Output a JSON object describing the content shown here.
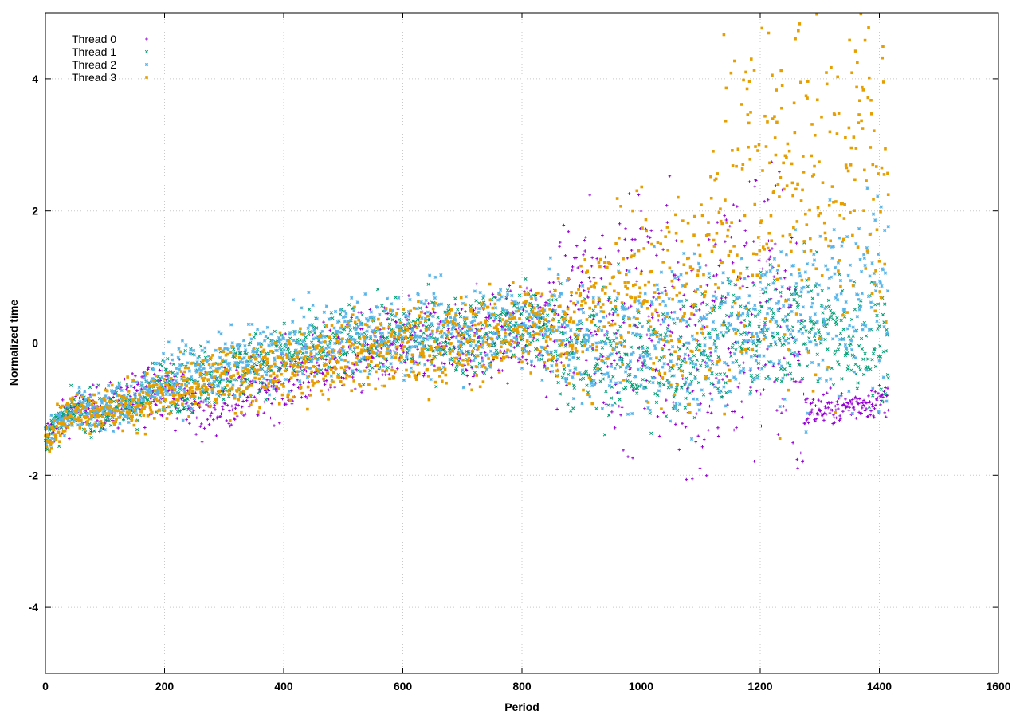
{
  "chart_data": {
    "type": "scatter",
    "title": "",
    "xlabel": "Period",
    "ylabel": "Normalized time",
    "xlim": [
      0,
      1600
    ],
    "ylim": [
      -5,
      5
    ],
    "x_ticks": [
      "0",
      "200",
      "400",
      "600",
      "800",
      "1000",
      "1200",
      "1400",
      "1600"
    ],
    "y_ticks": [
      "-4",
      "-2",
      "0",
      "2",
      "4"
    ],
    "grid": true,
    "legend_position": "top-left",
    "series": [
      {
        "name": "Thread 0",
        "color": "#9400d3",
        "marker": "plus",
        "trend": [
          [
            0,
            -1.4
          ],
          [
            50,
            -1.0
          ],
          [
            100,
            -1.0
          ],
          [
            150,
            -0.85
          ],
          [
            200,
            -0.6
          ],
          [
            250,
            -1.0
          ],
          [
            300,
            -0.85
          ],
          [
            400,
            -0.55
          ],
          [
            500,
            -0.2
          ],
          [
            600,
            -0.05
          ],
          [
            700,
            0.0
          ],
          [
            800,
            0.25
          ],
          [
            850,
            0.2
          ],
          [
            900,
            0.75
          ],
          [
            950,
            0.3
          ],
          [
            1000,
            0.5
          ],
          [
            1050,
            0.3
          ],
          [
            1100,
            -0.2
          ],
          [
            1150,
            0.3
          ],
          [
            1200,
            0.6
          ],
          [
            1250,
            0.4
          ],
          [
            1275,
            -1.05
          ],
          [
            1350,
            -0.95
          ],
          [
            1415,
            -0.85
          ]
        ],
        "spread": [
          [
            0,
            0.12
          ],
          [
            200,
            0.22
          ],
          [
            800,
            0.35
          ],
          [
            900,
            0.7
          ],
          [
            1150,
            1.2
          ],
          [
            1270,
            1.1
          ],
          [
            1275,
            0.12
          ],
          [
            1415,
            0.12
          ]
        ]
      },
      {
        "name": "Thread 1",
        "color": "#009e73",
        "marker": "cross",
        "trend": [
          [
            0,
            -1.4
          ],
          [
            50,
            -1.0
          ],
          [
            100,
            -1.05
          ],
          [
            150,
            -0.9
          ],
          [
            200,
            -0.6
          ],
          [
            250,
            -0.55
          ],
          [
            300,
            -0.45
          ],
          [
            400,
            -0.2
          ],
          [
            500,
            0.0
          ],
          [
            600,
            0.1
          ],
          [
            700,
            0.1
          ],
          [
            800,
            0.3
          ],
          [
            850,
            0.2
          ],
          [
            900,
            -0.3
          ],
          [
            950,
            -0.1
          ],
          [
            1000,
            -0.3
          ],
          [
            1050,
            -0.4
          ],
          [
            1100,
            0.0
          ],
          [
            1150,
            0.1
          ],
          [
            1200,
            0.1
          ],
          [
            1250,
            0.3
          ],
          [
            1300,
            0.3
          ],
          [
            1350,
            0.0
          ],
          [
            1415,
            0.05
          ]
        ],
        "spread": [
          [
            0,
            0.12
          ],
          [
            200,
            0.22
          ],
          [
            800,
            0.3
          ],
          [
            900,
            0.5
          ],
          [
            1415,
            0.45
          ]
        ]
      },
      {
        "name": "Thread 2",
        "color": "#56b4e9",
        "marker": "star",
        "trend": [
          [
            0,
            -1.4
          ],
          [
            50,
            -1.0
          ],
          [
            100,
            -1.0
          ],
          [
            150,
            -0.85
          ],
          [
            200,
            -0.55
          ],
          [
            250,
            -0.45
          ],
          [
            300,
            -0.35
          ],
          [
            400,
            -0.15
          ],
          [
            500,
            0.1
          ],
          [
            600,
            0.15
          ],
          [
            700,
            0.2
          ],
          [
            800,
            0.3
          ],
          [
            850,
            0.25
          ],
          [
            900,
            -0.1
          ],
          [
            950,
            0.0
          ],
          [
            1000,
            0.1
          ],
          [
            1050,
            0.0
          ],
          [
            1100,
            0.05
          ],
          [
            1150,
            0.2
          ],
          [
            1200,
            0.35
          ],
          [
            1250,
            0.45
          ],
          [
            1300,
            0.55
          ],
          [
            1350,
            0.6
          ],
          [
            1400,
            0.8
          ],
          [
            1415,
            0.9
          ]
        ],
        "spread": [
          [
            0,
            0.12
          ],
          [
            200,
            0.22
          ],
          [
            800,
            0.35
          ],
          [
            900,
            0.55
          ],
          [
            1200,
            0.6
          ],
          [
            1415,
            0.8
          ]
        ]
      },
      {
        "name": "Thread 3",
        "color": "#e69f00",
        "marker": "box",
        "trend": [
          [
            0,
            -1.4
          ],
          [
            50,
            -1.0
          ],
          [
            100,
            -1.0
          ],
          [
            150,
            -0.95
          ],
          [
            200,
            -0.8
          ],
          [
            250,
            -0.7
          ],
          [
            300,
            -0.55
          ],
          [
            400,
            -0.45
          ],
          [
            500,
            -0.15
          ],
          [
            600,
            -0.05
          ],
          [
            700,
            0.0
          ],
          [
            800,
            0.25
          ],
          [
            850,
            0.25
          ],
          [
            900,
            0.4
          ],
          [
            950,
            0.6
          ],
          [
            1000,
            0.9
          ],
          [
            1050,
            0.5
          ],
          [
            1100,
            0.7
          ],
          [
            1130,
            1.6
          ],
          [
            1150,
            2.0
          ],
          [
            1200,
            2.6
          ],
          [
            1250,
            2.3
          ],
          [
            1300,
            2.5
          ],
          [
            1350,
            3.0
          ],
          [
            1415,
            3.1
          ]
        ],
        "spread": [
          [
            0,
            0.12
          ],
          [
            200,
            0.22
          ],
          [
            800,
            0.35
          ],
          [
            900,
            0.5
          ],
          [
            1000,
            0.6
          ],
          [
            1100,
            0.9
          ],
          [
            1150,
            1.5
          ],
          [
            1415,
            1.7
          ]
        ]
      }
    ]
  }
}
